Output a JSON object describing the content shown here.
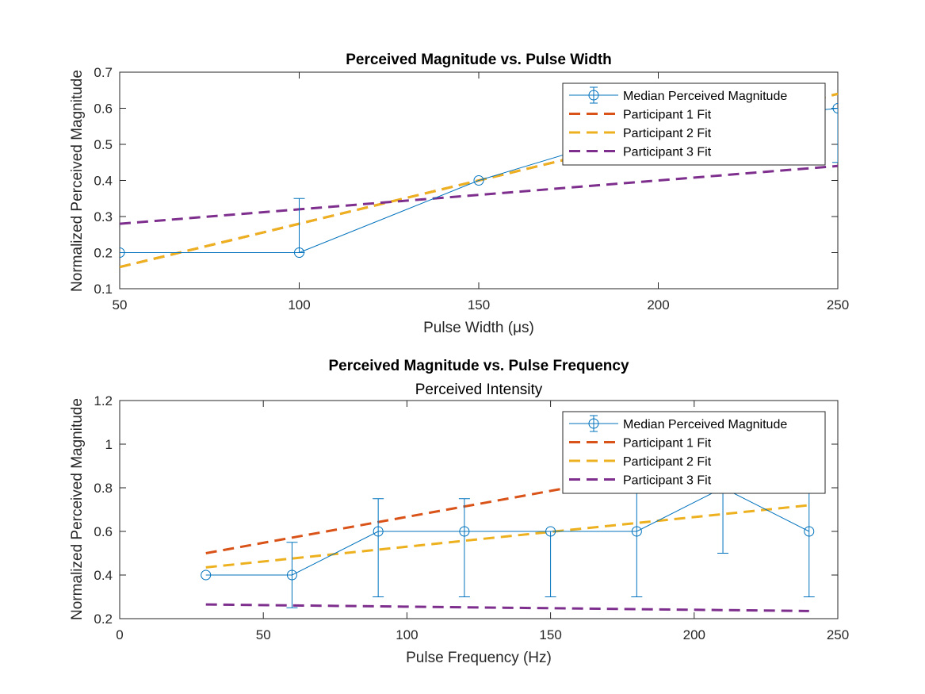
{
  "colors": {
    "median": "#0072BD",
    "participant1": "#D95319",
    "participant2": "#EDB120",
    "participant3": "#7E2F8E",
    "axis": "#262626"
  },
  "chart_data": [
    {
      "type": "line",
      "title": "Perceived Magnitude vs. Pulse Width",
      "subtitle": "",
      "xlabel": "Pulse Width (μs)",
      "ylabel": "Normalized Perceived Magnitude",
      "xlim": [
        50,
        250
      ],
      "ylim": [
        0.1,
        0.7
      ],
      "xticks": [
        50,
        100,
        150,
        200,
        250
      ],
      "yticks": [
        0.1,
        0.2,
        0.3,
        0.4,
        0.5,
        0.6,
        0.7
      ],
      "xtick_labels": [
        "50",
        "100",
        "150",
        "200",
        "250"
      ],
      "ytick_labels": [
        "0.1",
        "0.2",
        "0.3",
        "0.4",
        "0.5",
        "0.6",
        "0.7"
      ],
      "grid": false,
      "legend_position": "top-right",
      "series": [
        {
          "name": "Median Perceived Magnitude",
          "kind": "errorbar",
          "color_key": "median",
          "x": [
            50,
            100,
            150,
            200,
            250
          ],
          "y": [
            0.2,
            0.2,
            0.4,
            0.55,
            0.6
          ],
          "err_low": [
            null,
            0.2,
            null,
            null,
            0.45
          ],
          "err_high": [
            null,
            0.35,
            null,
            null,
            0.6
          ]
        },
        {
          "name": "Participant 1 Fit",
          "kind": "dashed",
          "color_key": "participant1",
          "x": [
            50,
            250
          ],
          "y": [
            0.16,
            0.64
          ]
        },
        {
          "name": "Participant 2 Fit",
          "kind": "dashed",
          "color_key": "participant2",
          "x": [
            50,
            250
          ],
          "y": [
            0.16,
            0.64
          ]
        },
        {
          "name": "Participant 3 Fit",
          "kind": "dashed",
          "color_key": "participant3",
          "x": [
            50,
            250
          ],
          "y": [
            0.28,
            0.44
          ]
        }
      ]
    },
    {
      "type": "line",
      "title": "Perceived Magnitude vs. Pulse Frequency",
      "subtitle": "Perceived Intensity",
      "xlabel": "Pulse Frequency (Hz)",
      "ylabel": "Normalized Perceived Magnitude",
      "xlim": [
        0,
        250
      ],
      "ylim": [
        0.2,
        1.2
      ],
      "xticks": [
        0,
        50,
        100,
        150,
        200,
        250
      ],
      "yticks": [
        0.2,
        0.4,
        0.6,
        0.8,
        1.0,
        1.2
      ],
      "xtick_labels": [
        "0",
        "50",
        "100",
        "150",
        "200",
        "250"
      ],
      "ytick_labels": [
        "0.2",
        "0.4",
        "0.6",
        "0.8",
        "1",
        "1.2"
      ],
      "grid": false,
      "legend_position": "top-right",
      "series": [
        {
          "name": "Median Perceived Magnitude",
          "kind": "errorbar",
          "color_key": "median",
          "x": [
            30,
            60,
            90,
            120,
            150,
            180,
            210,
            240
          ],
          "y": [
            0.4,
            0.4,
            0.6,
            0.6,
            0.6,
            0.6,
            0.8,
            0.6
          ],
          "err_low": [
            null,
            0.25,
            0.3,
            0.3,
            0.3,
            0.3,
            0.5,
            0.3
          ],
          "err_high": [
            null,
            0.55,
            0.75,
            0.75,
            0.6,
            0.85,
            0.9,
            0.85
          ]
        },
        {
          "name": "Participant 1 Fit",
          "kind": "dashed",
          "color_key": "participant1",
          "x": [
            30,
            240
          ],
          "y": [
            0.5,
            1.0
          ]
        },
        {
          "name": "Participant 2 Fit",
          "kind": "dashed",
          "color_key": "participant2",
          "x": [
            30,
            240
          ],
          "y": [
            0.435,
            0.72
          ]
        },
        {
          "name": "Participant 3 Fit",
          "kind": "dashed",
          "color_key": "participant3",
          "x": [
            30,
            240
          ],
          "y": [
            0.265,
            0.235
          ]
        }
      ]
    }
  ]
}
